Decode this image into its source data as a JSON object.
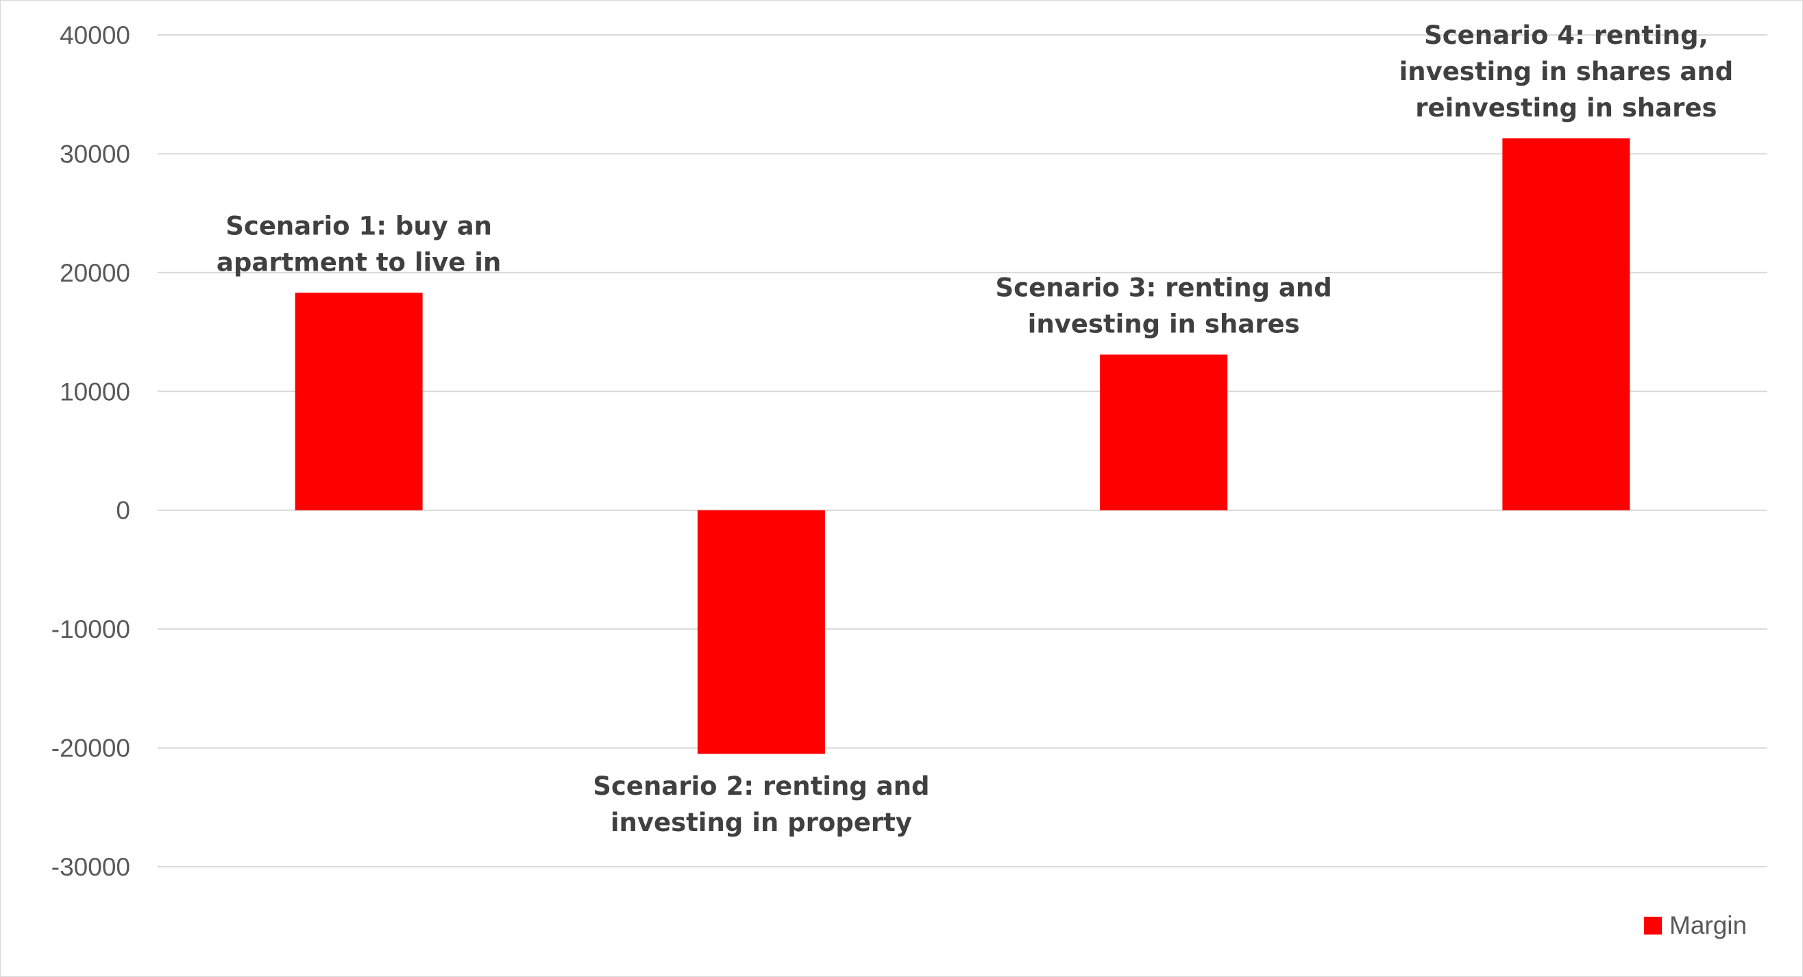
{
  "chart_data": {
    "type": "bar",
    "categories": [
      "Scenario 1: buy an apartment to live in",
      "Scenario 2: renting and investing in property",
      "Scenario 3: renting and investing in shares",
      "Scenario 4: renting, investing in shares and reinvesting in shares"
    ],
    "category_label_lines": [
      [
        "Scenario 1: buy an",
        "apartment to live in"
      ],
      [
        "Scenario 2: renting and",
        "investing in property"
      ],
      [
        "Scenario 3: renting and",
        "investing in shares"
      ],
      [
        "Scenario 4: renting,",
        "investing in shares and",
        "reinvesting in shares"
      ]
    ],
    "series": [
      {
        "name": "Margin",
        "values": [
          18300,
          -20500,
          13100,
          31300
        ]
      }
    ],
    "ylim": [
      -30000,
      40000
    ],
    "yticks": [
      40000,
      30000,
      20000,
      10000,
      0,
      -10000,
      -20000,
      -30000
    ],
    "ytick_labels": [
      "40000",
      "30000",
      "20000",
      "10000",
      "0",
      "-10000",
      "-20000",
      "-30000"
    ],
    "grid": true,
    "legend_position": "bottom-right",
    "colors": {
      "bar": "#ff0000",
      "grid": "#d9d9d9"
    }
  }
}
